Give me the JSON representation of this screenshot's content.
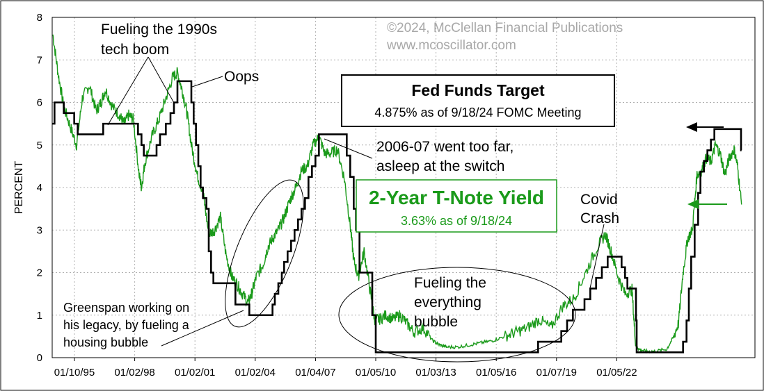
{
  "chart_data": {
    "type": "line",
    "title": "",
    "ylabel": "PERCENT",
    "xlabel": "",
    "ylim": [
      0,
      8
    ],
    "y_ticks": [
      "0",
      "1",
      "2",
      "3",
      "4",
      "5",
      "6",
      "7",
      "8"
    ],
    "x_ticks": [
      "01/10/95",
      "01/02/98",
      "01/02/01",
      "01/02/04",
      "01/04/07",
      "01/05/10",
      "01/03/13",
      "01/05/16",
      "01/07/19",
      "01/05/22"
    ],
    "xlim": [
      1995.0,
      2025.3
    ],
    "grid": true,
    "copyright": [
      "©2024, McClellan Financial Publications",
      "www.mcoscillator.com"
    ],
    "series": [
      {
        "name": "Fed Funds Target",
        "label": "Fed Funds Target",
        "sublabel": "4.875% as of 9/18/24 FOMC Meeting",
        "color": "#000000",
        "x": [
          1995.0,
          1995.1,
          1995.5,
          1995.95,
          1996.1,
          1997.2,
          1998.7,
          1998.85,
          1998.95,
          1999.5,
          1999.65,
          1999.9,
          2000.1,
          2000.25,
          2000.4,
          2001.0,
          2001.1,
          2001.2,
          2001.3,
          2001.4,
          2001.5,
          2001.65,
          2001.75,
          2001.85,
          2001.95,
          2002.9,
          2003.5,
          2004.5,
          2004.6,
          2004.75,
          2004.9,
          2005.0,
          2005.15,
          2005.3,
          2005.45,
          2005.6,
          2005.75,
          2005.9,
          2006.05,
          2006.2,
          2006.35,
          2006.5,
          2007.7,
          2007.85,
          2008.0,
          2008.1,
          2008.25,
          2008.8,
          2008.95,
          2015.95,
          2016.95,
          2017.2,
          2017.45,
          2017.95,
          2018.2,
          2018.45,
          2018.7,
          2018.95,
          2019.55,
          2019.7,
          2019.8,
          2020.17,
          2020.2,
          2022.2,
          2022.35,
          2022.45,
          2022.55,
          2022.7,
          2022.85,
          2022.95,
          2023.1,
          2023.25,
          2023.4,
          2023.55,
          2024.7,
          2024.72
        ],
        "y": [
          5.5,
          6.0,
          5.75,
          5.5,
          5.25,
          5.5,
          5.25,
          5.0,
          4.75,
          5.0,
          5.25,
          5.5,
          5.75,
          6.0,
          6.5,
          6.0,
          5.5,
          5.0,
          4.5,
          4.0,
          3.75,
          3.5,
          2.5,
          2.0,
          1.75,
          1.25,
          1.0,
          1.25,
          1.5,
          1.75,
          2.0,
          2.25,
          2.5,
          2.75,
          3.0,
          3.25,
          3.5,
          3.75,
          4.25,
          4.5,
          4.75,
          5.25,
          4.75,
          4.25,
          3.5,
          3.0,
          2.0,
          1.0,
          0.125,
          0.375,
          0.625,
          0.875,
          1.125,
          1.375,
          1.625,
          1.875,
          2.125,
          2.375,
          2.125,
          1.875,
          1.625,
          0.875,
          0.125,
          0.375,
          0.875,
          1.625,
          2.375,
          3.125,
          3.875,
          4.375,
          4.625,
          4.875,
          5.125,
          5.375,
          4.875,
          4.875
        ]
      },
      {
        "name": "2-Year T-Note Yield",
        "label": "2-Year T-Note Yield",
        "sublabel": "3.63% as of 9/18/24",
        "color": "#1a9a1a",
        "x": [
          1995.03,
          1995.25,
          1995.5,
          1995.8,
          1996.05,
          1996.3,
          1996.6,
          1996.9,
          1997.1,
          1997.3,
          1997.6,
          1997.9,
          1998.1,
          1998.3,
          1998.5,
          1998.75,
          1998.85,
          1999.0,
          1999.3,
          1999.6,
          1999.9,
          2000.2,
          2000.4,
          2000.6,
          2000.8,
          2001.0,
          2001.25,
          2001.5,
          2001.75,
          2002.0,
          2002.25,
          2002.5,
          2002.75,
          2003.0,
          2003.2,
          2003.45,
          2003.6,
          2003.8,
          2004.1,
          2004.3,
          2004.5,
          2004.75,
          2005.0,
          2005.25,
          2005.5,
          2005.75,
          2006.0,
          2006.25,
          2006.5,
          2006.75,
          2007.0,
          2007.3,
          2007.6,
          2007.85,
          2008.0,
          2008.2,
          2008.45,
          2008.7,
          2008.9,
          2009.1,
          2009.4,
          2009.7,
          2010.0,
          2010.3,
          2010.6,
          2011.0,
          2011.4,
          2011.7,
          2012.0,
          2012.5,
          2013.0,
          2013.5,
          2014.0,
          2014.5,
          2015.0,
          2015.5,
          2016.0,
          2016.5,
          2017.0,
          2017.5,
          2018.0,
          2018.5,
          2018.85,
          2019.1,
          2019.4,
          2019.7,
          2020.0,
          2020.15,
          2020.3,
          2020.6,
          2021.0,
          2021.5,
          2021.8,
          2022.0,
          2022.2,
          2022.4,
          2022.6,
          2022.8,
          2023.0,
          2023.2,
          2023.4,
          2023.6,
          2023.8,
          2024.0,
          2024.2,
          2024.4,
          2024.55,
          2024.72
        ],
        "y": [
          7.6,
          6.7,
          5.9,
          5.4,
          5.0,
          6.1,
          6.4,
          5.8,
          6.0,
          6.3,
          5.9,
          5.7,
          5.5,
          5.7,
          5.6,
          4.3,
          4.0,
          4.6,
          5.2,
          5.6,
          6.1,
          6.6,
          6.7,
          6.3,
          5.8,
          5.0,
          4.3,
          3.9,
          2.9,
          3.0,
          3.3,
          2.4,
          1.9,
          1.7,
          1.5,
          1.3,
          1.5,
          1.9,
          2.2,
          2.6,
          2.8,
          3.0,
          3.3,
          3.7,
          4.0,
          4.4,
          4.5,
          5.0,
          5.2,
          4.8,
          4.8,
          4.9,
          4.2,
          3.1,
          2.3,
          1.9,
          2.5,
          1.6,
          0.9,
          0.9,
          1.0,
          0.9,
          1.0,
          0.8,
          0.6,
          0.7,
          0.4,
          0.3,
          0.25,
          0.25,
          0.3,
          0.35,
          0.4,
          0.5,
          0.6,
          0.7,
          0.9,
          0.7,
          1.2,
          1.4,
          2.0,
          2.6,
          2.9,
          2.5,
          1.9,
          1.5,
          1.6,
          0.3,
          0.2,
          0.15,
          0.15,
          0.2,
          0.5,
          0.8,
          2.0,
          2.8,
          3.0,
          4.3,
          4.4,
          4.7,
          4.6,
          5.0,
          4.8,
          4.3,
          4.7,
          4.9,
          4.5,
          3.6
        ]
      }
    ],
    "annotations": [
      {
        "id": "tech-boom",
        "lines": [
          "Fueling the 1990s",
          "tech boom"
        ]
      },
      {
        "id": "oops",
        "lines": [
          "Oops"
        ]
      },
      {
        "id": "too-far",
        "lines": [
          "2006-07 went too far,",
          "asleep at the switch"
        ]
      },
      {
        "id": "covid",
        "lines": [
          "Covid",
          "Crash"
        ]
      },
      {
        "id": "everything-bubble",
        "lines": [
          "Fueling the",
          "everything",
          "bubble"
        ]
      },
      {
        "id": "greenspan",
        "lines": [
          "Greenspan working on",
          "his legacy, by fueling a",
          "housing bubble"
        ]
      }
    ]
  }
}
